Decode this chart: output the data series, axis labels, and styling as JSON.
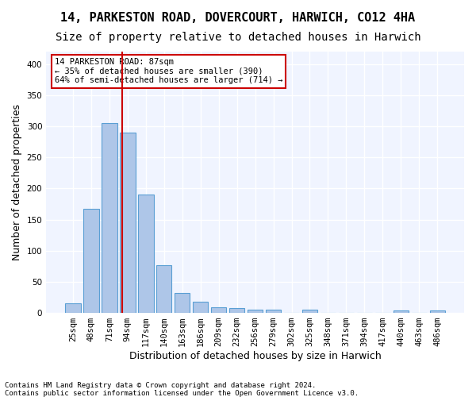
{
  "title1": "14, PARKESTON ROAD, DOVERCOURT, HARWICH, CO12 4HA",
  "title2": "Size of property relative to detached houses in Harwich",
  "xlabel": "Distribution of detached houses by size in Harwich",
  "ylabel": "Number of detached properties",
  "categories": [
    "25sqm",
    "48sqm",
    "71sqm",
    "94sqm",
    "117sqm",
    "140sqm",
    "163sqm",
    "186sqm",
    "209sqm",
    "232sqm",
    "256sqm",
    "279sqm",
    "302sqm",
    "325sqm",
    "348sqm",
    "371sqm",
    "394sqm",
    "417sqm",
    "440sqm",
    "463sqm",
    "486sqm"
  ],
  "values": [
    15,
    167,
    305,
    290,
    190,
    77,
    32,
    18,
    9,
    8,
    5,
    5,
    0,
    5,
    0,
    0,
    0,
    0,
    4,
    0,
    4
  ],
  "bar_color": "#aec6e8",
  "bar_edge_color": "#5a9fd4",
  "vline_x": 87,
  "vline_color": "#cc0000",
  "annotation_text": "14 PARKESTON ROAD: 87sqm\n← 35% of detached houses are smaller (390)\n64% of semi-detached houses are larger (714) →",
  "annotation_box_color": "white",
  "annotation_box_edge_color": "#cc0000",
  "footnote1": "Contains HM Land Registry data © Crown copyright and database right 2024.",
  "footnote2": "Contains public sector information licensed under the Open Government Licence v3.0.",
  "bg_color": "#f0f4ff",
  "grid_color": "white",
  "ylim": [
    0,
    420
  ],
  "yticks": [
    0,
    50,
    100,
    150,
    200,
    250,
    300,
    350,
    400
  ],
  "title1_fontsize": 11,
  "title2_fontsize": 10,
  "xlabel_fontsize": 9,
  "ylabel_fontsize": 9,
  "tick_fontsize": 7.5
}
